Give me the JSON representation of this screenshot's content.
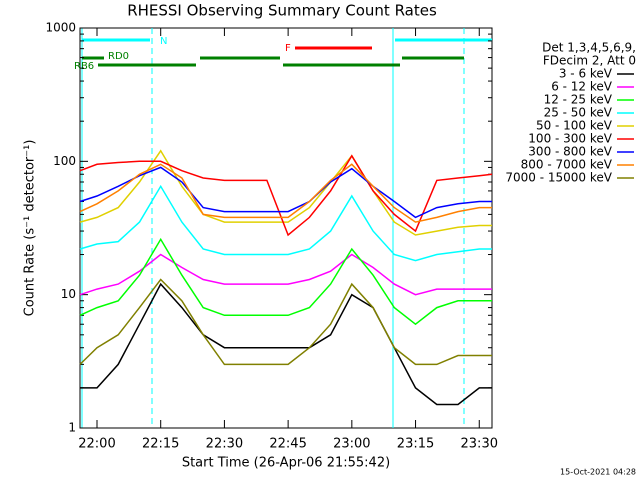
{
  "chart_data": {
    "type": "line",
    "title": "RHESSI Observing Summary Count Rates",
    "x_label": "Start Time (26-Apr-06 21:55:42)",
    "y_label": "Count Rate (s⁻¹ detector⁻¹)",
    "footer": "15-Oct-2021 04:28",
    "legend_header": [
      "Det 1,3,4,5,6,9,",
      "FDecim 2, Att 0"
    ],
    "annotations": [
      "N",
      "F",
      "RD0",
      "RB6"
    ],
    "log_y": true,
    "x": [
      "21:56",
      "22:00",
      "22:05",
      "22:10",
      "22:15",
      "22:20",
      "22:25",
      "22:30",
      "22:35",
      "22:40",
      "22:45",
      "22:50",
      "22:55",
      "23:00",
      "23:05",
      "23:10",
      "23:15",
      "23:20",
      "23:25",
      "23:30",
      "23:33"
    ],
    "xlim": [
      "21:56",
      "23:33"
    ],
    "xticks": [
      "22:00",
      "22:15",
      "22:30",
      "22:45",
      "23:00",
      "23:15",
      "23:30"
    ],
    "ylim": [
      1,
      1000
    ],
    "yticks": [
      1,
      10,
      100,
      1000
    ],
    "series": [
      {
        "name": "3 - 6 keV",
        "color": "#000000",
        "values": [
          2,
          2,
          3,
          6,
          12,
          8,
          5,
          4,
          4,
          4,
          4,
          4,
          5,
          10,
          8,
          4,
          2,
          1.5,
          1.5,
          2,
          2
        ]
      },
      {
        "name": "6 - 12 keV",
        "color": "#ff00ff",
        "values": [
          10,
          11,
          12,
          15,
          20,
          16,
          13,
          12,
          12,
          12,
          12,
          13,
          15,
          20,
          16,
          12,
          10,
          11,
          11,
          11,
          11
        ]
      },
      {
        "name": "12 - 25 keV",
        "color": "#00ff00",
        "values": [
          7,
          8,
          9,
          14,
          26,
          14,
          8,
          7,
          7,
          7,
          7,
          8,
          12,
          22,
          14,
          8,
          6,
          8,
          9,
          9,
          9
        ]
      },
      {
        "name": "25 - 50 keV",
        "color": "#00ffff",
        "values": [
          22,
          24,
          25,
          35,
          65,
          35,
          22,
          20,
          20,
          20,
          20,
          22,
          30,
          55,
          30,
          20,
          18,
          20,
          21,
          22,
          22
        ]
      },
      {
        "name": "50 - 100 keV",
        "color": "#e0d000",
        "values": [
          35,
          38,
          45,
          70,
          120,
          65,
          40,
          35,
          35,
          35,
          35,
          45,
          70,
          110,
          60,
          35,
          28,
          30,
          32,
          33,
          33
        ]
      },
      {
        "name": "100 - 300 keV",
        "color": "#ff0000",
        "values": [
          85,
          95,
          98,
          100,
          100,
          85,
          75,
          72,
          72,
          72,
          28,
          38,
          60,
          110,
          60,
          40,
          30,
          72,
          75,
          78,
          80
        ]
      },
      {
        "name": "300 - 800 keV",
        "color": "#0000ff",
        "values": [
          50,
          55,
          65,
          78,
          90,
          70,
          45,
          42,
          42,
          42,
          42,
          50,
          70,
          88,
          65,
          50,
          38,
          45,
          48,
          50,
          50
        ]
      },
      {
        "name": "800 - 7000 keV",
        "color": "#ff8000",
        "values": [
          42,
          48,
          60,
          80,
          95,
          75,
          40,
          38,
          38,
          38,
          38,
          50,
          72,
          95,
          65,
          45,
          35,
          38,
          42,
          45,
          45
        ]
      },
      {
        "name": "7000 - 15000 keV",
        "color": "#808000",
        "values": [
          3,
          4,
          5,
          8,
          13,
          9,
          5,
          3,
          3,
          3,
          3,
          4,
          6,
          12,
          8,
          4,
          3,
          3,
          3.5,
          3.5,
          3.5
        ]
      }
    ]
  }
}
